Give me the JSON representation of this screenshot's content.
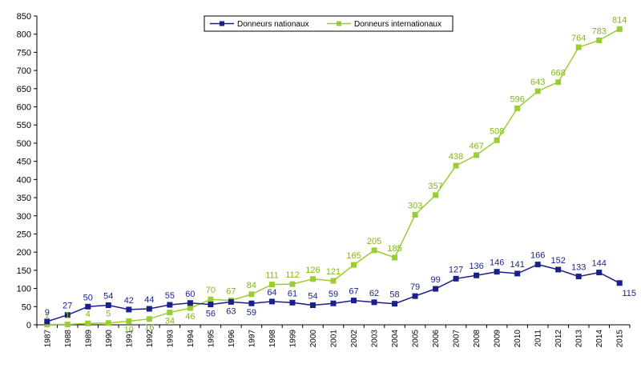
{
  "chart_data": {
    "type": "line",
    "title": "",
    "xlabel": "",
    "ylabel": "",
    "ylim": [
      0,
      850
    ],
    "y_ticks": [
      "0",
      "50",
      "100",
      "150",
      "200",
      "250",
      "300",
      "350",
      "400",
      "450",
      "500",
      "550",
      "600",
      "650",
      "700",
      "750",
      "800",
      "850"
    ],
    "legend_position": "top",
    "categories": [
      "1987",
      "1988",
      "1989",
      "1990",
      "1991",
      "1992",
      "1993",
      "1994",
      "1995",
      "1996",
      "1997",
      "1998",
      "1999",
      "2000",
      "2001",
      "2002",
      "2003",
      "2004",
      "2005",
      "2006",
      "2007",
      "2008",
      "2009",
      "2010",
      "2011",
      "2012",
      "2013",
      "2014",
      "2015"
    ],
    "series": [
      {
        "name": "Donneurs nationaux",
        "color": "#1a1f8a",
        "label_color": "#1a1f8a",
        "marker": "square",
        "values": [
          9,
          27,
          50,
          54,
          42,
          44,
          55,
          60,
          56,
          63,
          59,
          64,
          61,
          54,
          59,
          67,
          62,
          58,
          79,
          99,
          127,
          136,
          146,
          141,
          166,
          152,
          133,
          144,
          115
        ]
      },
      {
        "name": "Donneurs internationaux",
        "color": "#9acd32",
        "label_color": "#7fb817",
        "marker": "square",
        "values": [
          1,
          1,
          4,
          5,
          10,
          16,
          34,
          46,
          70,
          67,
          84,
          111,
          112,
          126,
          121,
          165,
          205,
          185,
          303,
          357,
          438,
          467,
          508,
          596,
          643,
          668,
          764,
          783,
          814
        ]
      }
    ]
  }
}
